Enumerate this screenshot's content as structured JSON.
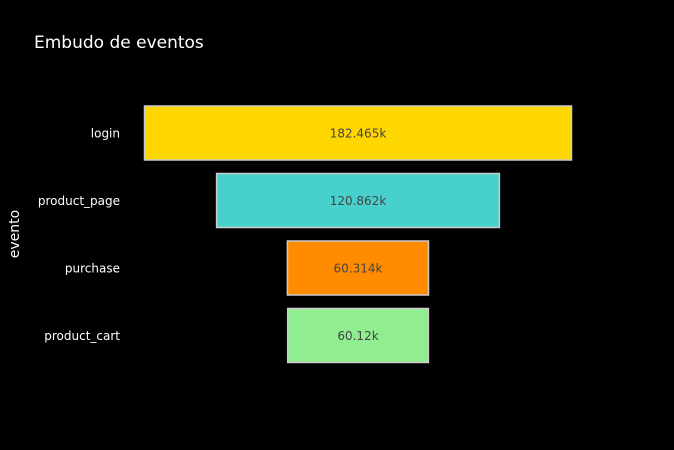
{
  "chart_data": {
    "type": "funnel",
    "title": "Embudo de eventos",
    "ylabel": "evento",
    "xlabel": "",
    "categories": [
      "login",
      "product_page",
      "purchase",
      "product_cart"
    ],
    "values": [
      182465,
      120862,
      60314,
      60120
    ],
    "value_labels": [
      "182.465k",
      "120.862k",
      "60.314k",
      "60.12k"
    ],
    "colors": [
      "#FFD700",
      "#48D1CC",
      "#FF8C00",
      "#90EE90"
    ],
    "grid": false,
    "legend": "none"
  },
  "colors": {
    "background": "#000000",
    "text": "#ffffff",
    "bar_label": "#444444",
    "bar_outline": "#cccccc"
  }
}
